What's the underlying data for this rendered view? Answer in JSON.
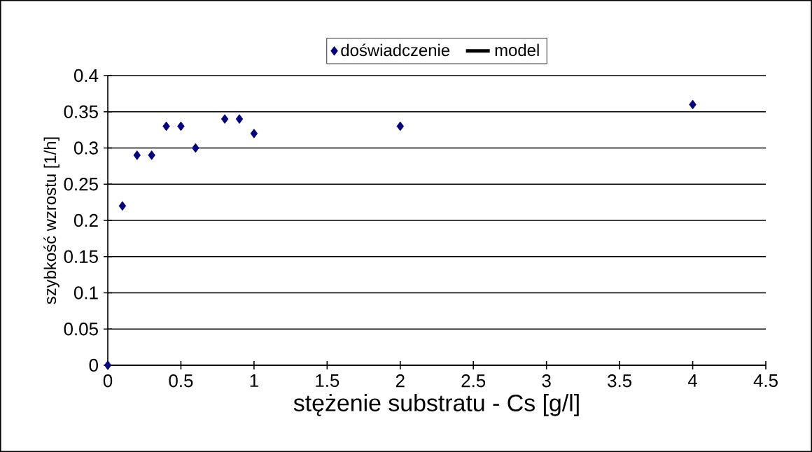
{
  "chart_data": {
    "type": "scatter",
    "xlabel": "stężenie substratu - Cs [g/l]",
    "ylabel": "szybkość wzrostu [1/h]",
    "x": [
      0,
      0.1,
      0.2,
      0.3,
      0.4,
      0.5,
      0.6,
      0.8,
      0.9,
      1.0,
      2,
      4
    ],
    "series": [
      {
        "name": "doświadczenie",
        "color": "#000080",
        "marker": "diamond",
        "values": [
          0,
          0.22,
          0.29,
          0.29,
          0.33,
          0.33,
          0.3,
          0.34,
          0.34,
          0.32,
          0.33,
          0.36
        ]
      },
      {
        "name": "model",
        "type": "line",
        "color": "#000000",
        "values": [
          null,
          null,
          null,
          null,
          null,
          null,
          null,
          null,
          null,
          null,
          null,
          null
        ]
      }
    ],
    "xlim": [
      0,
      4.5
    ],
    "xticks": [
      0,
      0.5,
      1,
      1.5,
      2,
      2.5,
      3,
      3.5,
      4,
      4.5
    ],
    "ylim": [
      0,
      0.4
    ],
    "yticks": [
      0,
      0.05,
      0.1,
      0.15,
      0.2,
      0.25,
      0.3,
      0.35,
      0.4
    ],
    "grid": "y",
    "legend": "top"
  }
}
